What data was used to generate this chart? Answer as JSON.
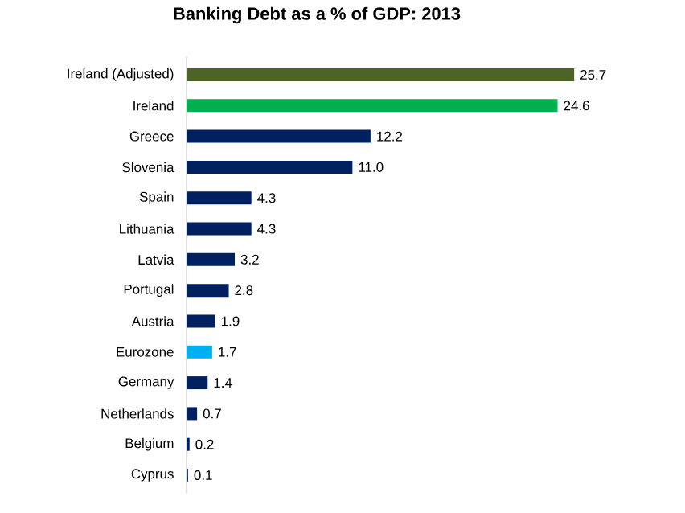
{
  "chart_data": {
    "type": "bar",
    "orientation": "horizontal",
    "title": "Banking Debt as a % of GDP:  2013",
    "categories": [
      "Ireland (Adjusted)",
      "Ireland",
      "Greece",
      "Slovenia",
      "Spain",
      "Lithuania",
      "Latvia",
      "Portugal",
      "Austria",
      "Eurozone",
      "Germany",
      "Netherlands",
      "Belgium",
      "Cyprus"
    ],
    "values": [
      25.7,
      24.6,
      12.2,
      11.0,
      4.3,
      4.3,
      3.2,
      2.8,
      1.9,
      1.7,
      1.4,
      0.7,
      0.2,
      0.1
    ],
    "value_labels": [
      "25.7",
      "24.6",
      "12.2",
      "11.0",
      "4.3",
      "4.3",
      "3.2",
      "2.8",
      "1.9",
      "1.7",
      "1.4",
      "0.7",
      "0.2",
      "0.1"
    ],
    "colors": [
      "#4f6228",
      "#00b050",
      "#002060",
      "#002060",
      "#002060",
      "#002060",
      "#002060",
      "#002060",
      "#002060",
      "#00b0f0",
      "#002060",
      "#002060",
      "#002060",
      "#002060"
    ]
  }
}
